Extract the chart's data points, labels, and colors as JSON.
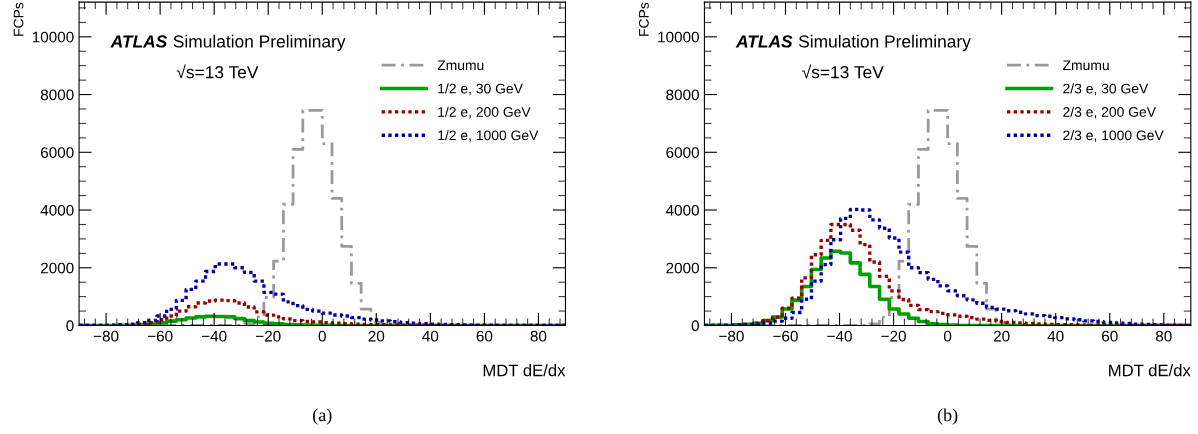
{
  "chart_data": [
    {
      "type": "histogram",
      "xlabel": "MDT dE/dx",
      "ylabel": "FCPs",
      "annotations": [
        "ATLAS",
        "Simulation Preliminary",
        "√s=13 TeV",
        "(a)"
      ],
      "bins": [
        -90,
        -86.4,
        -82.8,
        -79.2,
        -75.6,
        -72,
        -68.4,
        -64.8,
        -61.2,
        -57.6,
        -54,
        -50.4,
        -46.8,
        -43.2,
        -39.6,
        -36,
        -32.4,
        -28.8,
        -25.2,
        -21.6,
        -18,
        -14.4,
        -10.8,
        -7.2,
        -3.6,
        0,
        3.6,
        7.2,
        10.8,
        14.4,
        18,
        21.6,
        25.2,
        28.8,
        32.4,
        36,
        39.6,
        43.2,
        46.8,
        50.4,
        54,
        57.6,
        61.2,
        64.8,
        68.4,
        72,
        75.6,
        79.2,
        82.8,
        86.4,
        90
      ],
      "series": [
        {
          "name": "Zmumu",
          "color": "#999999",
          "line_style": "dashed",
          "values": [
            0,
            0,
            0,
            0,
            0,
            0,
            0,
            0,
            0,
            0,
            0,
            0,
            0,
            0,
            0,
            0,
            0,
            60,
            290,
            970,
            2230,
            4200,
            6100,
            7450,
            7450,
            6300,
            4400,
            2740,
            1460,
            570,
            110,
            20,
            0,
            0,
            0,
            0,
            0,
            0,
            0,
            0,
            0,
            0,
            0,
            0,
            0,
            0,
            0,
            0,
            0,
            0
          ]
        },
        {
          "name": "1/2 e, 30 GeV",
          "color": "#00a000",
          "line_style": "solid",
          "values": [
            0,
            0,
            0,
            0,
            5,
            10,
            25,
            50,
            90,
            150,
            200,
            260,
            300,
            320,
            310,
            300,
            240,
            170,
            120,
            80,
            55,
            35,
            25,
            15,
            10,
            5,
            0,
            0,
            0,
            0,
            0,
            0,
            0,
            0,
            0,
            0,
            0,
            0,
            0,
            0,
            0,
            0,
            0,
            0,
            0,
            0,
            0,
            0,
            0,
            0
          ]
        },
        {
          "name": "1/2 e, 200 GeV",
          "color": "#990000",
          "line_style": "dotted",
          "values": [
            0,
            0,
            0,
            5,
            10,
            20,
            50,
            100,
            200,
            330,
            500,
            650,
            780,
            850,
            880,
            860,
            780,
            640,
            470,
            360,
            300,
            230,
            170,
            140,
            120,
            100,
            80,
            65,
            50,
            40,
            30,
            25,
            20,
            15,
            10,
            10,
            5,
            5,
            0,
            0,
            0,
            0,
            0,
            0,
            0,
            0,
            0,
            0,
            0,
            0
          ]
        },
        {
          "name": "1/2 e, 1000 GeV",
          "color": "#0000aa",
          "line_style": "dotted",
          "values": [
            0,
            0,
            5,
            10,
            25,
            50,
            100,
            180,
            330,
            560,
            870,
            1250,
            1540,
            1870,
            2130,
            2130,
            2000,
            1840,
            1540,
            1150,
            1085,
            820,
            690,
            560,
            500,
            430,
            365,
            330,
            275,
            220,
            190,
            160,
            130,
            100,
            80,
            60,
            45,
            35,
            25,
            20,
            15,
            10,
            10,
            5,
            5,
            0,
            0,
            0,
            0,
            0
          ]
        }
      ],
      "xlim": [
        -90,
        90
      ],
      "xticks": [
        {
          "value": -80,
          "label": "−80"
        },
        {
          "value": -60,
          "label": "−60"
        },
        {
          "value": -40,
          "label": "−40"
        },
        {
          "value": -20,
          "label": "−20"
        },
        0,
        20,
        40,
        60,
        80
      ],
      "ylim": [
        0,
        11200
      ],
      "yticks": [
        0,
        2000,
        4000,
        6000,
        8000,
        10000
      ],
      "legend": "top right",
      "grid": false
    },
    {
      "type": "histogram",
      "xlabel": "MDT dE/dx",
      "ylabel": "FCPs",
      "annotations": [
        "ATLAS",
        "Simulation Preliminary",
        "√s=13 TeV",
        "(b)"
      ],
      "bins": [
        -90,
        -86.4,
        -82.8,
        -79.2,
        -75.6,
        -72,
        -68.4,
        -64.8,
        -61.2,
        -57.6,
        -54,
        -50.4,
        -46.8,
        -43.2,
        -39.6,
        -36,
        -32.4,
        -28.8,
        -25.2,
        -21.6,
        -18,
        -14.4,
        -10.8,
        -7.2,
        -3.6,
        0,
        3.6,
        7.2,
        10.8,
        14.4,
        18,
        21.6,
        25.2,
        28.8,
        32.4,
        36,
        39.6,
        43.2,
        46.8,
        50.4,
        54,
        57.6,
        61.2,
        64.8,
        68.4,
        72,
        75.6,
        79.2,
        82.8,
        86.4,
        90
      ],
      "series": [
        {
          "name": "Zmumu",
          "color": "#999999",
          "line_style": "dashed",
          "values": [
            0,
            0,
            0,
            0,
            0,
            0,
            0,
            0,
            0,
            0,
            0,
            0,
            0,
            0,
            0,
            0,
            0,
            60,
            290,
            970,
            2230,
            4200,
            6100,
            7450,
            7450,
            6300,
            4400,
            2740,
            1460,
            570,
            110,
            20,
            0,
            0,
            0,
            0,
            0,
            0,
            0,
            0,
            0,
            0,
            0,
            0,
            0,
            0,
            0,
            0,
            0,
            0
          ]
        },
        {
          "name": "2/3 e, 30 GeV",
          "color": "#00a000",
          "line_style": "solid",
          "values": [
            0,
            5,
            10,
            20,
            40,
            80,
            170,
            290,
            570,
            880,
            1350,
            1940,
            2340,
            2570,
            2510,
            2170,
            1770,
            1350,
            910,
            570,
            400,
            250,
            140,
            60,
            30,
            15,
            0,
            0,
            0,
            0,
            0,
            0,
            0,
            0,
            0,
            0,
            0,
            0,
            0,
            0,
            0,
            0,
            0,
            0,
            0,
            0,
            0,
            0,
            0,
            0
          ]
        },
        {
          "name": "2/3 e, 200 GeV",
          "color": "#990000",
          "line_style": "dotted",
          "values": [
            0,
            5,
            10,
            20,
            40,
            80,
            170,
            290,
            600,
            950,
            1650,
            2450,
            2950,
            3500,
            3500,
            3300,
            2800,
            2200,
            1700,
            1200,
            900,
            700,
            550,
            480,
            420,
            370,
            320,
            270,
            220,
            180,
            140,
            110,
            90,
            70,
            55,
            40,
            30,
            25,
            20,
            15,
            10,
            10,
            5,
            5,
            0,
            0,
            0,
            0,
            0,
            0
          ]
        },
        {
          "name": "2/3 e, 1000 GeV",
          "color": "#0000aa",
          "line_style": "dotted",
          "values": [
            0,
            0,
            5,
            10,
            20,
            40,
            80,
            150,
            250,
            450,
            910,
            1540,
            2110,
            2970,
            3710,
            4020,
            4000,
            3660,
            3370,
            3030,
            2540,
            2000,
            1830,
            1600,
            1370,
            1200,
            1030,
            890,
            770,
            630,
            570,
            510,
            460,
            400,
            340,
            320,
            270,
            230,
            200,
            160,
            140,
            110,
            90,
            70,
            50,
            35,
            25,
            15,
            10,
            5
          ]
        }
      ],
      "xlim": [
        -90,
        90
      ],
      "xticks": [
        {
          "value": -80,
          "label": "−80"
        },
        {
          "value": -60,
          "label": "−60"
        },
        {
          "value": -40,
          "label": "−40"
        },
        {
          "value": -20,
          "label": "−20"
        },
        0,
        20,
        40,
        60,
        80
      ],
      "ylim": [
        0,
        11200
      ],
      "yticks": [
        0,
        2000,
        4000,
        6000,
        8000,
        10000
      ],
      "legend": "top right",
      "grid": false
    }
  ]
}
